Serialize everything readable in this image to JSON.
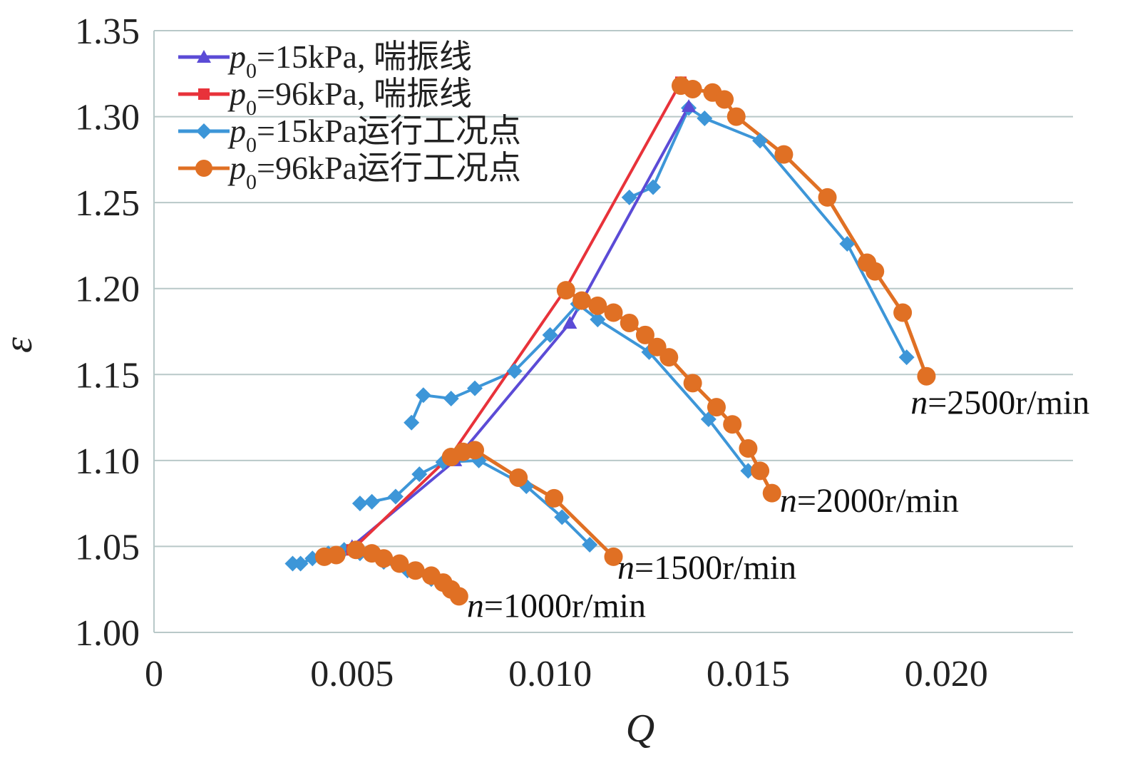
{
  "chart_data": {
    "type": "line",
    "title": "",
    "xlabel": "Q",
    "ylabel": "ε",
    "xlim": [
      0,
      0.0232
    ],
    "ylim": [
      1.0,
      1.35
    ],
    "grid": "horizontal",
    "x_ticks": [
      {
        "value": 0,
        "label": "0"
      },
      {
        "value": 0.005,
        "label": "0.005"
      },
      {
        "value": 0.01,
        "label": "0.010"
      },
      {
        "value": 0.015,
        "label": "0.015"
      },
      {
        "value": 0.02,
        "label": "0.020"
      }
    ],
    "y_ticks": [
      {
        "value": 1.0,
        "label": "1.00"
      },
      {
        "value": 1.05,
        "label": "1.05"
      },
      {
        "value": 1.1,
        "label": "1.10"
      },
      {
        "value": 1.15,
        "label": "1.15"
      },
      {
        "value": 1.2,
        "label": "1.20"
      },
      {
        "value": 1.25,
        "label": "1.25"
      },
      {
        "value": 1.3,
        "label": "1.30"
      },
      {
        "value": 1.35,
        "label": "1.35"
      }
    ],
    "legend_position": "top-left",
    "series": [
      {
        "name": "p0=15kPa, 喘振线",
        "legend": {
          "symbol": "p",
          "subscript": "0",
          "text": "=15kPa, 喘振线"
        },
        "color": "#5b4bd6",
        "marker": "triangle",
        "points": [
          {
            "x": 0.005,
            "y": 1.05
          },
          {
            "x": 0.0076,
            "y": 1.1
          },
          {
            "x": 0.0105,
            "y": 1.18
          },
          {
            "x": 0.0135,
            "y": 1.306
          }
        ]
      },
      {
        "name": "p0=96kPa, 喘振线",
        "legend": {
          "symbol": "p",
          "subscript": "0",
          "text": "=96kPa, 喘振线"
        },
        "color": "#e8323a",
        "marker": "square",
        "points": [
          {
            "x": 0.005,
            "y": 1.048
          },
          {
            "x": 0.0075,
            "y": 1.103
          },
          {
            "x": 0.0104,
            "y": 1.2
          },
          {
            "x": 0.0133,
            "y": 1.32
          }
        ]
      },
      {
        "name": "p0=15kPa运行工况点",
        "legend": {
          "symbol": "p",
          "subscript": "0",
          "text": "=15kPa运行工况点"
        },
        "color": "#3d96d8",
        "marker": "diamond",
        "segments": [
          [
            {
              "x": 0.0035,
              "y": 1.04
            },
            {
              "x": 0.0037,
              "y": 1.04
            },
            {
              "x": 0.004,
              "y": 1.043
            },
            {
              "x": 0.0044,
              "y": 1.046
            },
            {
              "x": 0.0048,
              "y": 1.048
            },
            {
              "x": 0.0052,
              "y": 1.046
            },
            {
              "x": 0.0058,
              "y": 1.041
            },
            {
              "x": 0.0064,
              "y": 1.036
            },
            {
              "x": 0.007,
              "y": 1.031
            },
            {
              "x": 0.0076,
              "y": 1.024
            }
          ],
          [
            {
              "x": 0.0052,
              "y": 1.075
            },
            {
              "x": 0.0055,
              "y": 1.076
            },
            {
              "x": 0.0061,
              "y": 1.079
            },
            {
              "x": 0.0067,
              "y": 1.092
            },
            {
              "x": 0.0073,
              "y": 1.099
            },
            {
              "x": 0.0082,
              "y": 1.1
            },
            {
              "x": 0.0094,
              "y": 1.085
            },
            {
              "x": 0.0103,
              "y": 1.067
            },
            {
              "x": 0.011,
              "y": 1.051
            }
          ],
          [
            {
              "x": 0.0065,
              "y": 1.122
            },
            {
              "x": 0.0068,
              "y": 1.138
            },
            {
              "x": 0.0075,
              "y": 1.136
            },
            {
              "x": 0.0081,
              "y": 1.142
            },
            {
              "x": 0.0091,
              "y": 1.152
            },
            {
              "x": 0.01,
              "y": 1.173
            },
            {
              "x": 0.0107,
              "y": 1.191
            },
            {
              "x": 0.0112,
              "y": 1.182
            },
            {
              "x": 0.0125,
              "y": 1.163
            },
            {
              "x": 0.014,
              "y": 1.124
            },
            {
              "x": 0.015,
              "y": 1.094
            }
          ],
          [
            {
              "x": 0.012,
              "y": 1.253
            },
            {
              "x": 0.0126,
              "y": 1.259
            },
            {
              "x": 0.0135,
              "y": 1.305
            },
            {
              "x": 0.0139,
              "y": 1.299
            },
            {
              "x": 0.0153,
              "y": 1.286
            },
            {
              "x": 0.0175,
              "y": 1.226
            },
            {
              "x": 0.019,
              "y": 1.16
            }
          ]
        ]
      },
      {
        "name": "p0=96kPa运行工况点",
        "legend": {
          "symbol": "p",
          "subscript": "0",
          "text": "=96kPa运行工况点"
        },
        "color": "#e07024",
        "marker": "circle",
        "segments": [
          [
            {
              "x": 0.0043,
              "y": 1.044
            },
            {
              "x": 0.0046,
              "y": 1.045
            },
            {
              "x": 0.0051,
              "y": 1.048
            },
            {
              "x": 0.0055,
              "y": 1.046
            },
            {
              "x": 0.0058,
              "y": 1.043
            },
            {
              "x": 0.0062,
              "y": 1.04
            },
            {
              "x": 0.0066,
              "y": 1.036
            },
            {
              "x": 0.007,
              "y": 1.033
            },
            {
              "x": 0.0073,
              "y": 1.029
            },
            {
              "x": 0.0075,
              "y": 1.025
            },
            {
              "x": 0.0077,
              "y": 1.021
            }
          ],
          [
            {
              "x": 0.0075,
              "y": 1.102
            },
            {
              "x": 0.0078,
              "y": 1.105
            },
            {
              "x": 0.0081,
              "y": 1.106
            },
            {
              "x": 0.0092,
              "y": 1.09
            },
            {
              "x": 0.0101,
              "y": 1.078
            },
            {
              "x": 0.0116,
              "y": 1.044
            }
          ],
          [
            {
              "x": 0.0104,
              "y": 1.199
            },
            {
              "x": 0.0108,
              "y": 1.193
            },
            {
              "x": 0.0112,
              "y": 1.19
            },
            {
              "x": 0.0116,
              "y": 1.186
            },
            {
              "x": 0.012,
              "y": 1.18
            },
            {
              "x": 0.0124,
              "y": 1.173
            },
            {
              "x": 0.0127,
              "y": 1.166
            },
            {
              "x": 0.013,
              "y": 1.16
            },
            {
              "x": 0.0136,
              "y": 1.145
            },
            {
              "x": 0.0142,
              "y": 1.131
            },
            {
              "x": 0.0146,
              "y": 1.121
            },
            {
              "x": 0.015,
              "y": 1.107
            },
            {
              "x": 0.0153,
              "y": 1.094
            },
            {
              "x": 0.0156,
              "y": 1.081
            }
          ],
          [
            {
              "x": 0.0133,
              "y": 1.318
            },
            {
              "x": 0.0136,
              "y": 1.316
            },
            {
              "x": 0.0141,
              "y": 1.314
            },
            {
              "x": 0.0144,
              "y": 1.31
            },
            {
              "x": 0.0147,
              "y": 1.3
            },
            {
              "x": 0.0159,
              "y": 1.278
            },
            {
              "x": 0.017,
              "y": 1.253
            },
            {
              "x": 0.018,
              "y": 1.215
            },
            {
              "x": 0.0182,
              "y": 1.21
            },
            {
              "x": 0.0189,
              "y": 1.186
            },
            {
              "x": 0.0195,
              "y": 1.149
            }
          ]
        ]
      }
    ],
    "annotations": [
      {
        "id": "ann-2500",
        "n": "n",
        "text": "=2500r/min",
        "x": 0.0191,
        "y": 1.127
      },
      {
        "id": "ann-2000",
        "n": "n",
        "text": "=2000r/min",
        "x": 0.0158,
        "y": 1.07
      },
      {
        "id": "ann-1500",
        "n": "n",
        "text": "=1500r/min",
        "x": 0.0117,
        "y": 1.031
      },
      {
        "id": "ann-1000",
        "n": "n",
        "text": "=1000r/min",
        "x": 0.0079,
        "y": 1.009
      }
    ]
  }
}
